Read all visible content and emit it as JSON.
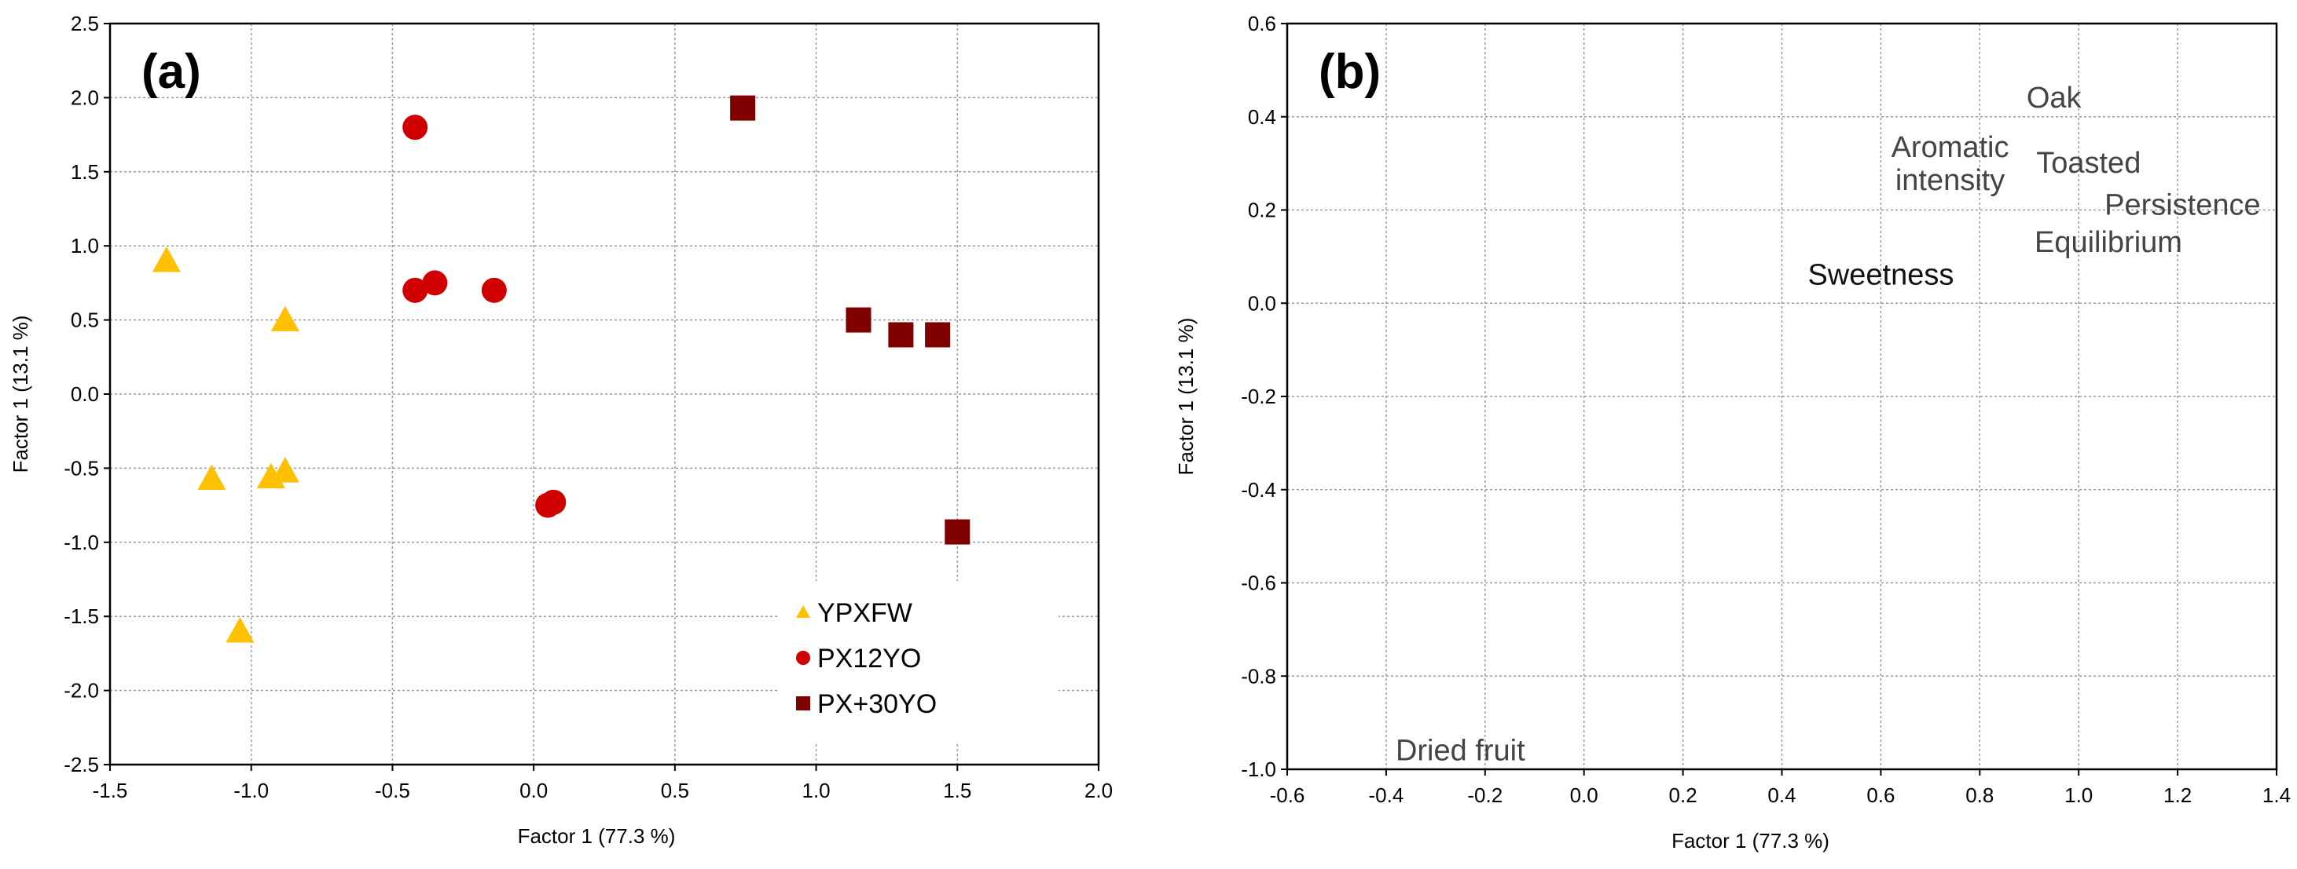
{
  "chart_data": [
    {
      "type": "scatter",
      "panel_label": "(a)",
      "xlabel": "Factor 1 (77.3 %)",
      "ylabel": "Factor 1 (13.1 %)",
      "xlim": [
        -1.5,
        2.0
      ],
      "ylim": [
        -2.5,
        2.5
      ],
      "xticks": [
        -1.5,
        -1.0,
        -0.5,
        0.0,
        0.5,
        1.0,
        1.5,
        2.0
      ],
      "xtick_labels": [
        "-1.5",
        "-1.0",
        "-0.5",
        "0.0",
        "0.5",
        "1.0",
        "1.5",
        "2.0"
      ],
      "yticks": [
        2.5,
        2.0,
        1.5,
        1.0,
        0.5,
        0.0,
        -0.5,
        -1.0,
        -1.5,
        -2.0,
        -2.5
      ],
      "ytick_labels": [
        "2.5",
        "2.0",
        "1.5",
        "1.0",
        "0.5",
        "0.0",
        "-0.5",
        "-1.0",
        "-1.5",
        "-2.0",
        "-2.5"
      ],
      "grid": true,
      "legend_position": "bottom-right",
      "series": [
        {
          "name": "YPXFW",
          "marker": "triangle",
          "color": "#FFC000",
          "points": [
            [
              -1.3,
              0.9
            ],
            [
              -0.88,
              0.5
            ],
            [
              -1.14,
              -0.57
            ],
            [
              -0.93,
              -0.56
            ],
            [
              -0.88,
              -0.52
            ],
            [
              -1.04,
              -1.6
            ]
          ]
        },
        {
          "name": "PX12YO",
          "marker": "circle",
          "color": "#D00000",
          "points": [
            [
              -0.42,
              1.8
            ],
            [
              -0.42,
              0.7
            ],
            [
              -0.35,
              0.75
            ],
            [
              -0.14,
              0.7
            ],
            [
              0.05,
              -0.75
            ],
            [
              0.07,
              -0.73
            ]
          ]
        },
        {
          "name": "PX+30YO",
          "marker": "square",
          "color": "#800000",
          "points": [
            [
              0.74,
              1.93
            ],
            [
              1.15,
              0.5
            ],
            [
              1.3,
              0.4
            ],
            [
              1.43,
              0.4
            ],
            [
              1.5,
              -0.93
            ]
          ]
        }
      ]
    },
    {
      "type": "scatter",
      "panel_label": "(b)",
      "xlabel": "Factor 1 (77.3 %)",
      "ylabel": "Factor 1 (13.1 %)",
      "xlim": [
        -0.6,
        1.4
      ],
      "ylim": [
        -1.0,
        0.6
      ],
      "xticks": [
        -0.6,
        -0.4,
        -0.2,
        0.0,
        0.2,
        0.4,
        0.6,
        0.8,
        1.0,
        1.2,
        1.4
      ],
      "xtick_labels": [
        "-0.6",
        "-0.4",
        "-0.2",
        "0.0",
        "0.2",
        "0.4",
        "0.6",
        "0.8",
        "1.0",
        "1.2",
        "1.4"
      ],
      "yticks": [
        0.6,
        0.4,
        0.2,
        0.0,
        -0.2,
        -0.4,
        -0.6,
        -0.8,
        -1.0
      ],
      "ytick_labels": [
        "0.6",
        "0.4",
        "0.2",
        "0.0",
        "-0.2",
        "-0.4",
        "-0.6",
        "-0.8",
        "-1.0"
      ],
      "grid": true,
      "variables": [
        {
          "lines": [
            "Oak"
          ],
          "x": 0.95,
          "y": 0.44,
          "dark": false
        },
        {
          "lines": [
            "Aromatic",
            "intensity"
          ],
          "x": 0.74,
          "y": 0.3,
          "dark": false
        },
        {
          "lines": [
            "Toasted"
          ],
          "x": 1.02,
          "y": 0.3,
          "dark": false
        },
        {
          "lines": [
            "Persistence"
          ],
          "x": 1.21,
          "y": 0.21,
          "dark": false
        },
        {
          "lines": [
            "Equilibrium"
          ],
          "x": 1.06,
          "y": 0.13,
          "dark": false
        },
        {
          "lines": [
            "Sweetness"
          ],
          "x": 0.6,
          "y": 0.06,
          "dark": true
        },
        {
          "lines": [
            "Dried fruit"
          ],
          "x": -0.25,
          "y": -0.96,
          "dark": false
        }
      ]
    }
  ]
}
